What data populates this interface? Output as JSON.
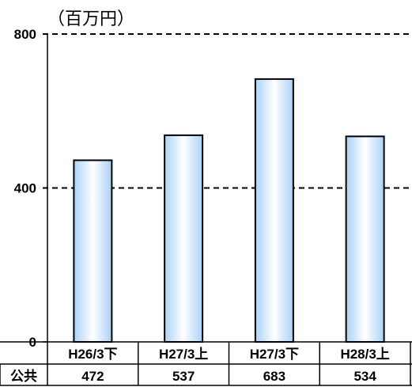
{
  "chart_data": {
    "type": "bar",
    "unit_label": "（百万円）",
    "categories": [
      "H26/3下",
      "H27/3上",
      "H27/3下",
      "H28/3上"
    ],
    "series": [
      {
        "name": "公共",
        "values": [
          472,
          537,
          683,
          534
        ]
      }
    ],
    "table_row_label": "公共",
    "table_values": [
      "472",
      "537",
      "683",
      "534"
    ],
    "ylim": [
      0,
      800
    ],
    "yticks": [
      0,
      400,
      800
    ],
    "grid": "dashed horizontal at 400 and 800",
    "legend": "none (data table below axis)",
    "bar_colors": {
      "edge": "#a9d2f7",
      "center": "#ffffff",
      "outline": "#000000"
    }
  }
}
